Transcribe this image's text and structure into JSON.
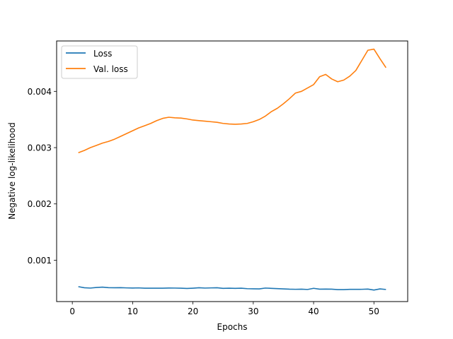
{
  "chart_data": {
    "type": "line",
    "title": "",
    "xlabel": "Epochs",
    "ylabel": "Negative log-likelihood",
    "xlim": [
      -2.6,
      55.6
    ],
    "ylim": [
      0.000265,
      0.004895
    ],
    "xticks": [
      0,
      10,
      20,
      30,
      40,
      50
    ],
    "yticks": [
      0.001,
      0.002,
      0.003,
      0.004
    ],
    "ytick_labels": [
      "0.001",
      "0.002",
      "0.003",
      "0.004"
    ],
    "grid": false,
    "legend": "top-left",
    "x": [
      1,
      2,
      3,
      4,
      5,
      6,
      7,
      8,
      9,
      10,
      11,
      12,
      13,
      14,
      15,
      16,
      17,
      18,
      19,
      20,
      21,
      22,
      23,
      24,
      25,
      26,
      27,
      28,
      29,
      30,
      31,
      32,
      33,
      34,
      35,
      36,
      37,
      38,
      39,
      40,
      41,
      42,
      43,
      44,
      45,
      46,
      47,
      48,
      49,
      50,
      51,
      52
    ],
    "series": [
      {
        "name": "Loss",
        "color": "#1f77b4",
        "values": [
          0.00053,
          0.00051,
          0.000505,
          0.000515,
          0.000522,
          0.000512,
          0.00051,
          0.000512,
          0.000508,
          0.000506,
          0.000508,
          0.000503,
          0.000502,
          0.000503,
          0.000502,
          0.000506,
          0.000505,
          0.000503,
          0.000498,
          0.000503,
          0.00051,
          0.000505,
          0.000508,
          0.00051,
          0.0005,
          0.000503,
          0.0005,
          0.000502,
          0.000494,
          0.000492,
          0.00049,
          0.000505,
          0.0005,
          0.000495,
          0.00049,
          0.000485,
          0.000483,
          0.000485,
          0.00048,
          0.0005,
          0.000485,
          0.000487,
          0.000485,
          0.000478,
          0.000478,
          0.000482,
          0.000482,
          0.000483,
          0.000487,
          0.00047,
          0.00049,
          0.00048
        ]
      },
      {
        "name": "Val. loss",
        "color": "#ff7f0e",
        "values": [
          0.00291,
          0.00295,
          0.003,
          0.00304,
          0.00308,
          0.00311,
          0.00315,
          0.0032,
          0.00325,
          0.0033,
          0.00335,
          0.00339,
          0.00343,
          0.00348,
          0.00352,
          0.00354,
          0.00353,
          0.003525,
          0.00351,
          0.00349,
          0.00348,
          0.00347,
          0.00346,
          0.00345,
          0.00343,
          0.00342,
          0.003415,
          0.00342,
          0.00343,
          0.00346,
          0.0035,
          0.00356,
          0.00364,
          0.0037,
          0.00378,
          0.00387,
          0.00397,
          0.004,
          0.00406,
          0.00412,
          0.00426,
          0.0043,
          0.00422,
          0.00417,
          0.0042,
          0.00427,
          0.00437,
          0.00455,
          0.00473,
          0.00475,
          0.00458,
          0.00442
        ]
      }
    ]
  }
}
